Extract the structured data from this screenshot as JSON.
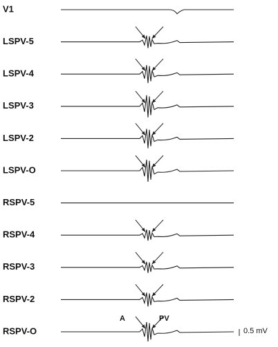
{
  "channels": [
    "V1",
    "LSPV-5",
    "LSPV-4",
    "LSPV-3",
    "LSPV-2",
    "LSPV-O",
    "RSPV-5",
    "RSPV-4",
    "RSPV-3",
    "RSPV-2",
    "RSPV-O"
  ],
  "annotations": {
    "atrial": "A",
    "pv": "PV",
    "scale": "0.5 mV"
  }
}
